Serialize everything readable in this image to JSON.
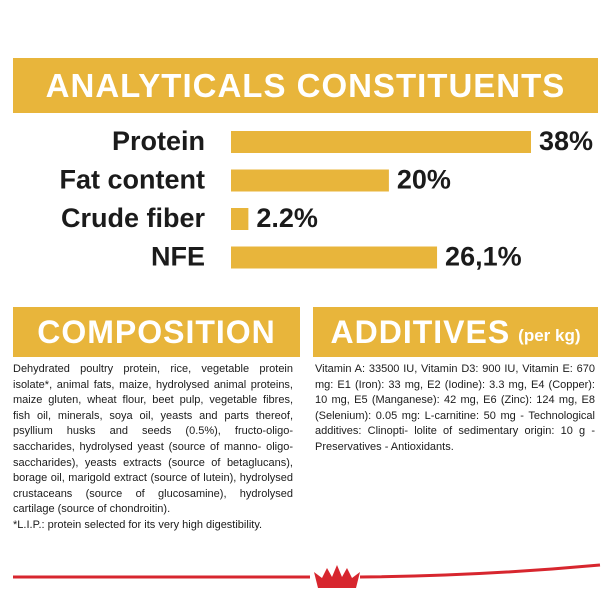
{
  "chart_data": {
    "type": "bar",
    "orientation": "horizontal",
    "title": "ANALYTICALS CONSTITUENTS",
    "categories": [
      "Protein",
      "Fat content",
      "Crude fiber",
      "NFE"
    ],
    "values": [
      38,
      20,
      2.2,
      26.1
    ],
    "value_labels": [
      "38%",
      "20%",
      "2.2%",
      "26,1%"
    ],
    "color": "#e8b53b"
  },
  "composition": {
    "title": "COMPOSITION",
    "text": "Dehydrated poultry protein, rice, vegetable protein isolate*, animal fats, maize, hydrolysed animal proteins, maize gluten, wheat flour, beet pulp, vegetable fibres, fish oil, minerals, soya oil, yeasts and parts thereof, psyllium husks and seeds (0.5%), fructo-oligo-saccharides, hydrolysed yeast (source of manno- oligo-saccharides), yeasts extracts (source of betaglucans), borage oil, marigold extract (source of lutein), hydrolysed crustaceans (source of glucosamine), hydrolysed cartilage (source of chondroitin).",
    "footnote": "*L.I.P.: protein selected for its very high digestibility."
  },
  "additives": {
    "title": "ADDITIVES",
    "unit": "(per kg)",
    "text": "Vitamin A: 33500 IU, Vitamin D3: 900 IU, Vitamin E: 670 mg: E1 (Iron): 33 mg, E2 (Iodine): 3.3 mg, E4 (Copper): 10 mg, E5 (Manganese): 42 mg, E6 (Zinc): 124 mg, E8 (Selenium): 0.05 mg: L-carnitine: 50 mg - Technological additives: Clinopti- lolite of sedimentary origin: 10 g - Preservatives - Antioxidants."
  }
}
